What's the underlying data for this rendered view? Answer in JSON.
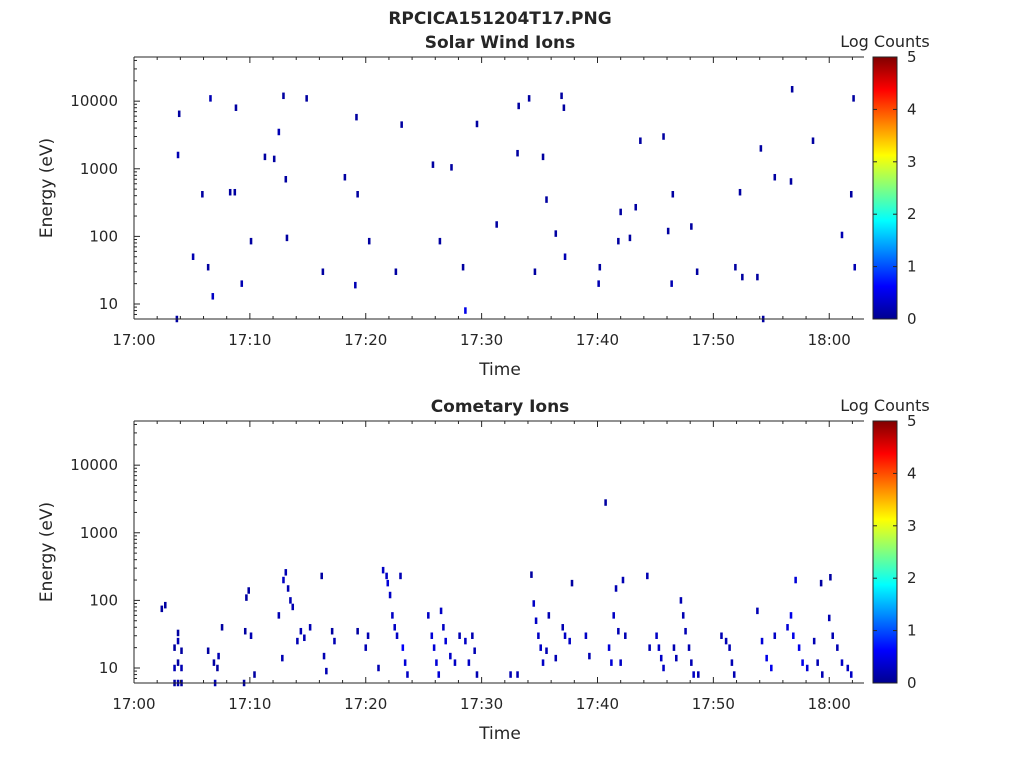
{
  "figure_title": "RPCICA151204T17.PNG",
  "colormap": [
    "#00008f",
    "#0000ff",
    "#0080ff",
    "#00ffff",
    "#80ff80",
    "#ffff00",
    "#ff8000",
    "#ff0000",
    "#800000"
  ],
  "chart_data": [
    {
      "type": "heatmap",
      "title": "Solar Wind Ions",
      "xlabel": "Time",
      "ylabel": "Energy (eV)",
      "x_ticks": [
        "17:00",
        "17:10",
        "17:20",
        "17:30",
        "17:40",
        "17:50",
        "18:00"
      ],
      "x_range_minutes": [
        0,
        63
      ],
      "y_scale": "log",
      "y_ticks": [
        "10",
        "100",
        "1000",
        "10000"
      ],
      "y_range": [
        6,
        45000
      ],
      "colorbar": {
        "label": "Log Counts",
        "range": [
          0,
          5
        ],
        "ticks": [
          "0",
          "1",
          "2",
          "3",
          "4",
          "5"
        ]
      },
      "points": [
        [
          3.7,
          6,
          0.1
        ],
        [
          3.8,
          1600,
          0.2
        ],
        [
          3.9,
          6500,
          0.1
        ],
        [
          5.1,
          50,
          0.2
        ],
        [
          5.9,
          420,
          0.1
        ],
        [
          6.4,
          35,
          0.1
        ],
        [
          6.6,
          11000,
          0.2
        ],
        [
          6.8,
          13,
          0.3
        ],
        [
          8.3,
          450,
          0.1
        ],
        [
          8.7,
          450,
          0.1
        ],
        [
          8.8,
          8000,
          0.1
        ],
        [
          9.3,
          20,
          0.2
        ],
        [
          10.1,
          85,
          0.1
        ],
        [
          11.3,
          1500,
          0.1
        ],
        [
          12.1,
          1400,
          0.1
        ],
        [
          12.5,
          3500,
          0.2
        ],
        [
          12.9,
          12000,
          0.1
        ],
        [
          13.1,
          700,
          0.1
        ],
        [
          13.2,
          95,
          0.1
        ],
        [
          14.9,
          11000,
          0.1
        ],
        [
          16.3,
          30,
          0.1
        ],
        [
          18.2,
          750,
          0.1
        ],
        [
          19.1,
          19,
          0.2
        ],
        [
          19.2,
          5800,
          0.1
        ],
        [
          19.3,
          420,
          0.1
        ],
        [
          20.3,
          85,
          0.1
        ],
        [
          22.6,
          30,
          0.1
        ],
        [
          23.1,
          4500,
          0.1
        ],
        [
          25.8,
          1150,
          0.1
        ],
        [
          26.4,
          85,
          0.1
        ],
        [
          27.4,
          1050,
          0.1
        ],
        [
          28.4,
          35,
          0.1
        ],
        [
          28.6,
          8,
          0.5
        ],
        [
          29.6,
          4600,
          0.1
        ],
        [
          31.3,
          150,
          0.1
        ],
        [
          33.1,
          1700,
          0.1
        ],
        [
          33.2,
          8500,
          0.1
        ],
        [
          34.1,
          11000,
          0.1
        ],
        [
          34.6,
          30,
          0.1
        ],
        [
          35.3,
          1500,
          0.1
        ],
        [
          35.6,
          350,
          0.1
        ],
        [
          36.4,
          110,
          0.1
        ],
        [
          36.9,
          12000,
          0.1
        ],
        [
          37.1,
          8000,
          0.1
        ],
        [
          37.2,
          50,
          0.2
        ],
        [
          40.1,
          20,
          0.2
        ],
        [
          40.2,
          35,
          0.1
        ],
        [
          41.8,
          85,
          0.1
        ],
        [
          42.0,
          230,
          0.1
        ],
        [
          42.8,
          95,
          0.1
        ],
        [
          43.3,
          270,
          0.1
        ],
        [
          43.7,
          2600,
          0.1
        ],
        [
          45.7,
          3000,
          0.1
        ],
        [
          46.1,
          120,
          0.1
        ],
        [
          46.4,
          20,
          0.2
        ],
        [
          46.5,
          420,
          0.1
        ],
        [
          48.1,
          140,
          0.1
        ],
        [
          48.6,
          30,
          0.1
        ],
        [
          51.9,
          35,
          0.1
        ],
        [
          52.3,
          450,
          0.1
        ],
        [
          52.5,
          25,
          0.1
        ],
        [
          53.8,
          25,
          0.1
        ],
        [
          54.1,
          2000,
          0.1
        ],
        [
          54.3,
          6,
          0.1
        ],
        [
          55.3,
          750,
          0.1
        ],
        [
          56.7,
          650,
          0.1
        ],
        [
          56.8,
          15000,
          0.1
        ],
        [
          58.6,
          2600,
          0.1
        ],
        [
          61.1,
          105,
          0.2
        ],
        [
          61.9,
          420,
          0.1
        ],
        [
          62.1,
          11000,
          0.1
        ],
        [
          62.2,
          35,
          0.2
        ]
      ]
    },
    {
      "type": "heatmap",
      "title": "Cometary Ions",
      "xlabel": "Time",
      "ylabel": "Energy (eV)",
      "x_ticks": [
        "17:00",
        "17:10",
        "17:20",
        "17:30",
        "17:40",
        "17:50",
        "18:00"
      ],
      "x_range_minutes": [
        0,
        63
      ],
      "y_scale": "log",
      "y_ticks": [
        "10",
        "100",
        "1000",
        "10000"
      ],
      "y_range": [
        6,
        45000
      ],
      "colorbar": {
        "label": "Log Counts",
        "range": [
          0,
          5
        ],
        "ticks": [
          "0",
          "1",
          "2",
          "3",
          "4",
          "5"
        ]
      },
      "points": [
        [
          2.4,
          75,
          0.1
        ],
        [
          2.7,
          85,
          0.1
        ],
        [
          3.5,
          6,
          0.1
        ],
        [
          3.5,
          10,
          0.2
        ],
        [
          3.5,
          20,
          0.1
        ],
        [
          3.8,
          6,
          0.2
        ],
        [
          3.8,
          12,
          0.1
        ],
        [
          3.8,
          25,
          0.2
        ],
        [
          3.8,
          33,
          0.1
        ],
        [
          4.1,
          6,
          0.1
        ],
        [
          4.1,
          10,
          0.2
        ],
        [
          4.1,
          18,
          0.1
        ],
        [
          6.4,
          18,
          0.1
        ],
        [
          6.9,
          12,
          0.1
        ],
        [
          7.0,
          6,
          0.2
        ],
        [
          7.2,
          10,
          0.1
        ],
        [
          7.3,
          15,
          0.2
        ],
        [
          7.6,
          40,
          0.1
        ],
        [
          9.5,
          6,
          0.1
        ],
        [
          9.6,
          35,
          0.1
        ],
        [
          10.1,
          30,
          0.2
        ],
        [
          10.4,
          8,
          0.1
        ],
        [
          9.7,
          110,
          0.1
        ],
        [
          9.9,
          140,
          0.1
        ],
        [
          12.5,
          60,
          0.2
        ],
        [
          12.8,
          14,
          0.2
        ],
        [
          12.9,
          200,
          0.3
        ],
        [
          13.1,
          260,
          0.2
        ],
        [
          13.3,
          150,
          0.2
        ],
        [
          13.5,
          100,
          0.2
        ],
        [
          13.7,
          80,
          0.2
        ],
        [
          14.1,
          25,
          0.2
        ],
        [
          14.4,
          35,
          0.2
        ],
        [
          14.7,
          28,
          0.2
        ],
        [
          15.2,
          40,
          0.2
        ],
        [
          16.2,
          230,
          0.1
        ],
        [
          16.4,
          15,
          0.2
        ],
        [
          16.6,
          9,
          0.2
        ],
        [
          17.1,
          35,
          0.1
        ],
        [
          17.3,
          25,
          0.2
        ],
        [
          19.3,
          35,
          0.1
        ],
        [
          20.0,
          20,
          0.2
        ],
        [
          20.2,
          30,
          0.2
        ],
        [
          21.1,
          10,
          0.2
        ],
        [
          21.5,
          280,
          0.3
        ],
        [
          21.8,
          230,
          0.3
        ],
        [
          21.9,
          180,
          0.4
        ],
        [
          22.1,
          120,
          0.3
        ],
        [
          22.3,
          60,
          0.3
        ],
        [
          22.5,
          40,
          0.3
        ],
        [
          22.7,
          30,
          0.3
        ],
        [
          23.0,
          230,
          0.2
        ],
        [
          23.2,
          20,
          0.6
        ],
        [
          23.4,
          12,
          0.4
        ],
        [
          23.6,
          8,
          0.3
        ],
        [
          25.4,
          60,
          0.3
        ],
        [
          25.7,
          30,
          0.4
        ],
        [
          25.9,
          20,
          0.4
        ],
        [
          26.1,
          12,
          0.4
        ],
        [
          26.3,
          8,
          0.4
        ],
        [
          26.5,
          70,
          0.3
        ],
        [
          26.7,
          40,
          0.3
        ],
        [
          26.9,
          25,
          0.4
        ],
        [
          27.3,
          15,
          0.3
        ],
        [
          27.7,
          12,
          0.3
        ],
        [
          28.1,
          30,
          0.2
        ],
        [
          28.6,
          25,
          0.3
        ],
        [
          28.9,
          12,
          0.3
        ],
        [
          29.2,
          30,
          0.2
        ],
        [
          29.4,
          18,
          0.2
        ],
        [
          29.6,
          8,
          0.2
        ],
        [
          32.5,
          8,
          0.2
        ],
        [
          33.1,
          8,
          0.2
        ],
        [
          34.3,
          240,
          0.1
        ],
        [
          34.5,
          90,
          0.3
        ],
        [
          34.7,
          50,
          0.3
        ],
        [
          34.9,
          30,
          0.3
        ],
        [
          35.1,
          20,
          0.3
        ],
        [
          35.3,
          12,
          0.3
        ],
        [
          35.6,
          18,
          0.2
        ],
        [
          35.8,
          60,
          0.2
        ],
        [
          36.4,
          14,
          0.2
        ],
        [
          37.0,
          40,
          0.2
        ],
        [
          37.2,
          30,
          0.3
        ],
        [
          37.6,
          25,
          0.3
        ],
        [
          37.8,
          180,
          0.1
        ],
        [
          39.0,
          30,
          0.3
        ],
        [
          39.3,
          15,
          0.2
        ],
        [
          40.7,
          2800,
          0.1
        ],
        [
          41.0,
          20,
          0.4
        ],
        [
          41.2,
          12,
          0.4
        ],
        [
          41.4,
          60,
          0.3
        ],
        [
          41.6,
          150,
          0.2
        ],
        [
          41.8,
          35,
          0.2
        ],
        [
          42.0,
          12,
          0.3
        ],
        [
          42.2,
          200,
          0.2
        ],
        [
          42.4,
          30,
          0.2
        ],
        [
          44.3,
          230,
          0.2
        ],
        [
          44.5,
          20,
          0.2
        ],
        [
          45.1,
          30,
          0.3
        ],
        [
          45.3,
          20,
          0.3
        ],
        [
          45.5,
          14,
          0.3
        ],
        [
          45.7,
          10,
          0.3
        ],
        [
          46.6,
          20,
          0.2
        ],
        [
          46.8,
          14,
          0.2
        ],
        [
          47.2,
          100,
          0.2
        ],
        [
          47.4,
          60,
          0.2
        ],
        [
          47.6,
          35,
          0.2
        ],
        [
          47.9,
          20,
          0.2
        ],
        [
          48.1,
          12,
          0.2
        ],
        [
          48.3,
          8,
          0.3
        ],
        [
          48.7,
          8,
          0.2
        ],
        [
          50.7,
          30,
          0.2
        ],
        [
          51.1,
          25,
          0.2
        ],
        [
          51.4,
          20,
          0.2
        ],
        [
          51.6,
          12,
          0.2
        ],
        [
          51.8,
          8,
          0.2
        ],
        [
          53.8,
          70,
          0.2
        ],
        [
          54.2,
          25,
          0.4
        ],
        [
          54.6,
          14,
          0.5
        ],
        [
          55.0,
          10,
          0.5
        ],
        [
          55.3,
          30,
          0.3
        ],
        [
          56.4,
          40,
          0.4
        ],
        [
          56.7,
          60,
          0.5
        ],
        [
          56.9,
          30,
          0.5
        ],
        [
          57.1,
          200,
          0.4
        ],
        [
          57.4,
          20,
          0.5
        ],
        [
          57.7,
          12,
          0.5
        ],
        [
          58.1,
          10,
          0.4
        ],
        [
          58.7,
          25,
          0.2
        ],
        [
          59.0,
          12,
          0.2
        ],
        [
          59.4,
          8,
          0.2
        ],
        [
          60.0,
          55,
          0.2
        ],
        [
          60.3,
          30,
          0.2
        ],
        [
          60.7,
          20,
          0.2
        ],
        [
          61.1,
          12,
          0.3
        ],
        [
          61.6,
          10,
          0.3
        ],
        [
          61.9,
          8,
          0.3
        ],
        [
          59.3,
          180,
          0.1
        ],
        [
          60.1,
          220,
          0.1
        ]
      ]
    }
  ]
}
